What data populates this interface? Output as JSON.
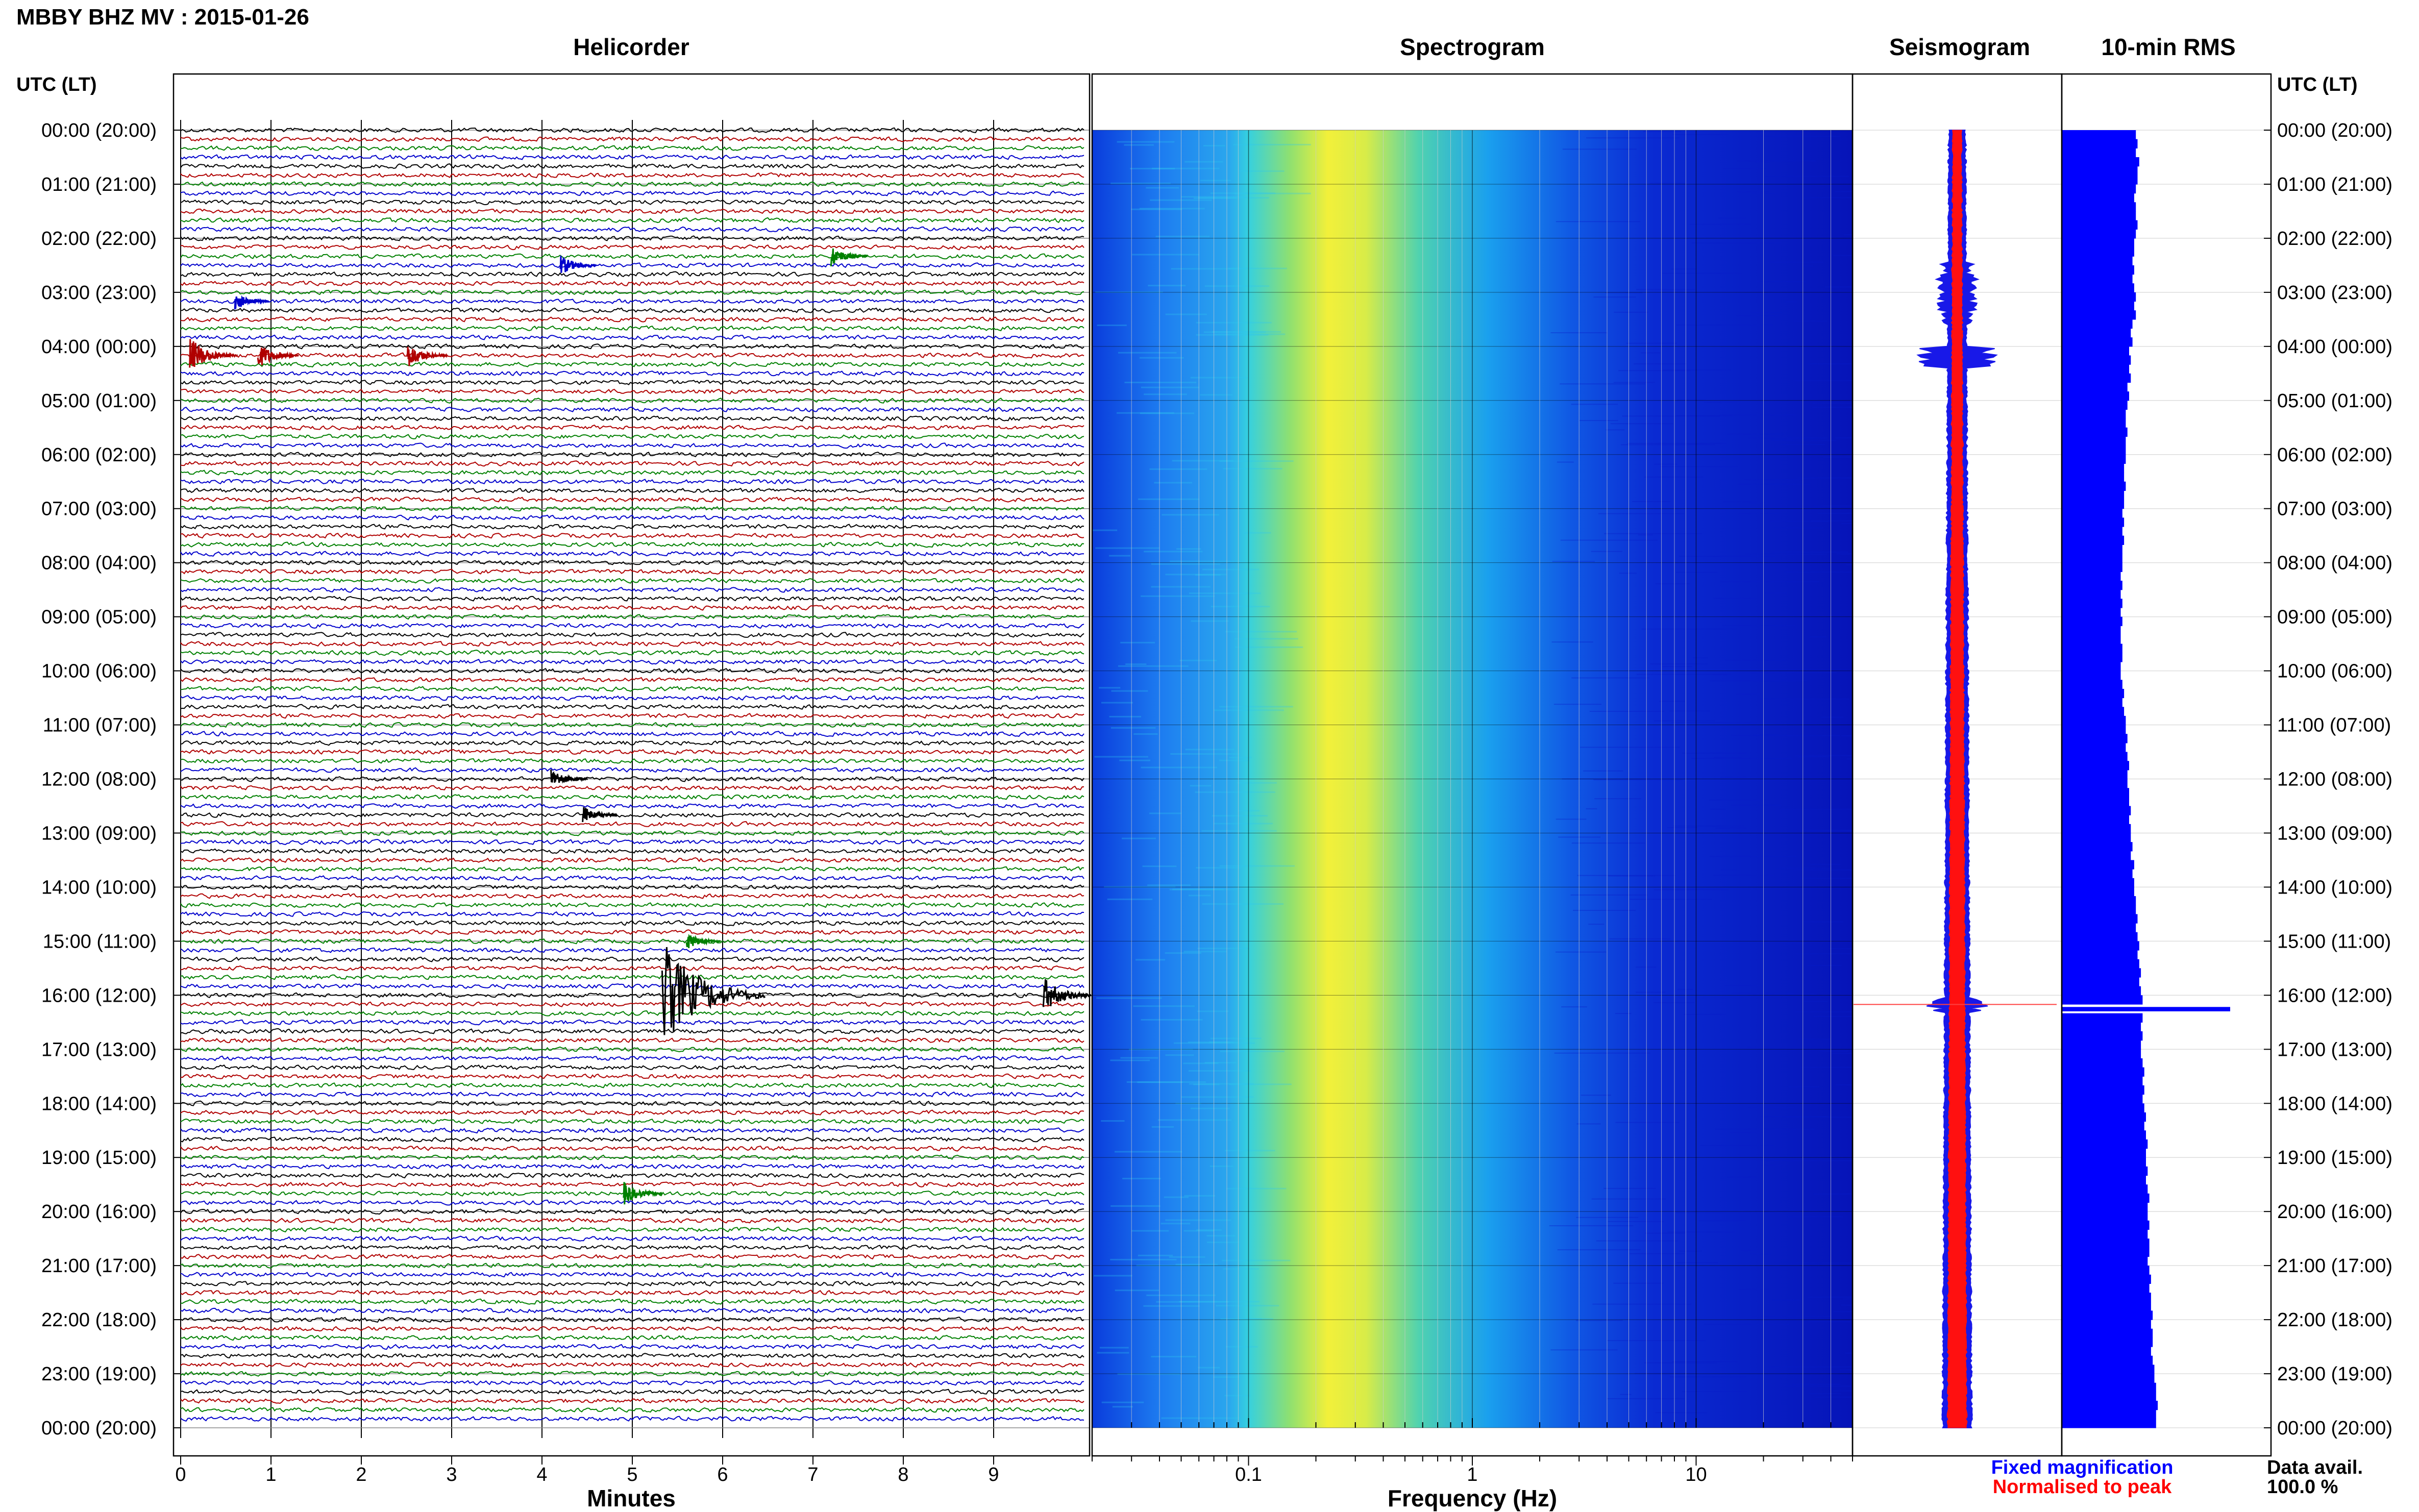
{
  "header": {
    "station_title": "MBBY BHZ MV : 2015-01-26",
    "utc_lt_left": "UTC (LT)",
    "utc_lt_right": "UTC (LT)"
  },
  "panels": {
    "helicorder": {
      "title": "Helicorder",
      "xlabel": "Minutes"
    },
    "spectrogram": {
      "title": "Spectrogram",
      "xlabel": "Frequency (Hz)"
    },
    "seismogram": {
      "title": "Seismogram"
    },
    "rms": {
      "title": "10-min RMS"
    }
  },
  "legend": {
    "fixed": "Fixed magnification",
    "normalised": "Normalised to peak",
    "fixed_color": "#0000ff",
    "normalised_color": "#ff0000"
  },
  "data_availability": {
    "label": "Data avail.",
    "value": "100.0 %"
  },
  "chart_data": {
    "type": "heatmap",
    "time_labels": [
      "00:00 (20:00)",
      "01:00 (21:00)",
      "02:00 (22:00)",
      "03:00 (23:00)",
      "04:00 (00:00)",
      "05:00 (01:00)",
      "06:00 (02:00)",
      "07:00 (03:00)",
      "08:00 (04:00)",
      "09:00 (05:00)",
      "10:00 (06:00)",
      "11:00 (07:00)",
      "12:00 (08:00)",
      "13:00 (09:00)",
      "14:00 (10:00)",
      "15:00 (11:00)",
      "16:00 (12:00)",
      "17:00 (13:00)",
      "18:00 (14:00)",
      "19:00 (15:00)",
      "20:00 (16:00)",
      "21:00 (17:00)",
      "22:00 (18:00)",
      "23:00 (19:00)",
      "00:00 (20:00)"
    ],
    "helicorder": {
      "x_ticks": [
        "0",
        "1",
        "2",
        "3",
        "4",
        "5",
        "6",
        "7",
        "8",
        "9"
      ],
      "xlim": [
        0,
        10
      ],
      "lines_per_hour": 6,
      "trace_colors": [
        "#000000",
        "#b00000",
        "#008000",
        "#0000cc"
      ],
      "events": [
        {
          "hour": 2.33,
          "minute": 7.2,
          "amplitude": 0.35
        },
        {
          "hour": 2.5,
          "minute": 4.2,
          "amplitude": 0.35
        },
        {
          "hour": 3.17,
          "minute": 0.6,
          "amplitude": 0.3
        },
        {
          "hour": 4.17,
          "minute": 0.1,
          "amplitude": 0.6
        },
        {
          "hour": 4.17,
          "minute": 0.85,
          "amplitude": 0.45
        },
        {
          "hour": 4.17,
          "minute": 2.5,
          "amplitude": 0.45
        },
        {
          "hour": 12.0,
          "minute": 4.1,
          "amplitude": 0.35
        },
        {
          "hour": 12.67,
          "minute": 4.45,
          "amplitude": 0.3
        },
        {
          "hour": 15.0,
          "minute": 5.6,
          "amplitude": 0.3
        },
        {
          "hour": 16.0,
          "minute": 5.33,
          "amplitude": 1.8
        },
        {
          "hour": 16.0,
          "minute": 9.55,
          "amplitude": 0.6
        },
        {
          "hour": 19.67,
          "minute": 4.9,
          "amplitude": 0.4
        }
      ]
    },
    "spectrogram": {
      "xscale": "log",
      "xlim": [
        0.02,
        50
      ],
      "x_ticks": [
        "0.1",
        "1",
        "10"
      ],
      "colormap": "jet",
      "peak_band_hz": [
        0.3,
        0.5
      ]
    },
    "seismogram": {
      "series": [
        {
          "name": "Fixed magnification",
          "color": "#0000ff"
        },
        {
          "name": "Normalised to peak",
          "color": "#ff0000"
        }
      ],
      "event_hour": 16.17
    },
    "rms": {
      "interval_minutes": 10,
      "bar_color": "#0000ff",
      "values": [
        0.44,
        0.45,
        0.44,
        0.46,
        0.45,
        0.45,
        0.44,
        0.43,
        0.44,
        0.44,
        0.45,
        0.44,
        0.43,
        0.43,
        0.42,
        0.43,
        0.42,
        0.43,
        0.44,
        0.43,
        0.44,
        0.42,
        0.41,
        0.42,
        0.4,
        0.41,
        0.4,
        0.41,
        0.39,
        0.4,
        0.39,
        0.38,
        0.38,
        0.39,
        0.38,
        0.38,
        0.38,
        0.37,
        0.37,
        0.38,
        0.37,
        0.37,
        0.36,
        0.37,
        0.36,
        0.37,
        0.36,
        0.36,
        0.36,
        0.35,
        0.36,
        0.35,
        0.36,
        0.35,
        0.36,
        0.35,
        0.35,
        0.36,
        0.36,
        0.35,
        0.35,
        0.36,
        0.37,
        0.36,
        0.37,
        0.38,
        0.38,
        0.39,
        0.38,
        0.39,
        0.4,
        0.39,
        0.39,
        0.4,
        0.4,
        0.41,
        0.4,
        0.41,
        0.41,
        0.42,
        0.41,
        0.43,
        0.42,
        0.43,
        0.43,
        0.44,
        0.44,
        0.45,
        0.44,
        0.45,
        0.46,
        0.45,
        0.46,
        0.47,
        0.46,
        0.47,
        0.48,
        1.0,
        0.48,
        0.47,
        0.48,
        0.47,
        0.47,
        0.48,
        0.49,
        0.48,
        0.49,
        0.48,
        0.49,
        0.5,
        0.49,
        0.5,
        0.51,
        0.5,
        0.5,
        0.51,
        0.5,
        0.51,
        0.52,
        0.51,
        0.51,
        0.52,
        0.51,
        0.52,
        0.52,
        0.51,
        0.52,
        0.53,
        0.52,
        0.53,
        0.53,
        0.54,
        0.53,
        0.54,
        0.54,
        0.53,
        0.54,
        0.55,
        0.55,
        0.56,
        0.56,
        0.57,
        0.56,
        0.56
      ]
    }
  }
}
